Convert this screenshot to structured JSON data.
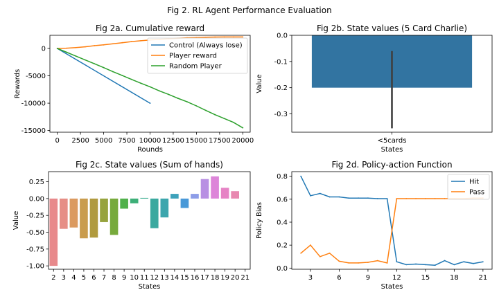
{
  "figure": {
    "suptitle": "Fig 2. RL Agent Performance Evaluation"
  },
  "chart_data": [
    {
      "id": "a",
      "type": "line",
      "title": "Fig 2a. Cumulative reward",
      "xlabel": "Rounds",
      "ylabel": "Rewards",
      "xlim": [
        -800,
        20800
      ],
      "ylim": [
        -15300,
        2400
      ],
      "xticks": [
        0,
        2500,
        5000,
        7500,
        10000,
        12500,
        15000,
        17500,
        20000
      ],
      "yticks": [
        0,
        -5000,
        -10000,
        -15000
      ],
      "legend_position": "upper-right",
      "series": [
        {
          "name": "Control (Always lose)",
          "color": "#1f77b4",
          "x": [
            0,
            10000
          ],
          "y": [
            0,
            -10000
          ]
        },
        {
          "name": "Player reward",
          "color": "#ff7f0e",
          "x": [
            0,
            1000,
            2000,
            3000,
            4000,
            5000,
            6000,
            7000,
            8000,
            9000,
            10000,
            11000,
            12000,
            13000,
            14000,
            15000,
            16000,
            17000,
            18000,
            19000,
            20000
          ],
          "y": [
            0,
            50,
            150,
            300,
            500,
            650,
            850,
            1050,
            1250,
            1400,
            1550,
            1650,
            1750,
            1850,
            1950,
            2000,
            2050,
            2080,
            2100,
            2100,
            2100
          ]
        },
        {
          "name": "Random Player",
          "color": "#2ca02c",
          "x": [
            0,
            1000,
            2000,
            3000,
            4000,
            5000,
            6000,
            7000,
            8000,
            9000,
            10000,
            11000,
            12000,
            13000,
            14000,
            15000,
            16000,
            17000,
            18000,
            19000,
            20000
          ],
          "y": [
            0,
            -700,
            -1400,
            -2100,
            -2800,
            -3500,
            -4250,
            -4950,
            -5650,
            -6350,
            -7000,
            -7750,
            -8400,
            -9100,
            -9750,
            -10500,
            -11300,
            -12100,
            -12800,
            -13500,
            -14500
          ]
        }
      ]
    },
    {
      "id": "b",
      "type": "bar",
      "title": "Fig 2b. State values (5 Card Charlie)",
      "xlabel": "States",
      "ylabel": "Value",
      "ylim": [
        -0.37,
        0.0
      ],
      "yticks": [
        0.0,
        -0.1,
        -0.2,
        -0.3
      ],
      "categories": [
        "<5cards"
      ],
      "values": [
        -0.2
      ],
      "error": [
        [
          -0.355,
          -0.06
        ]
      ],
      "color": "#3274a1"
    },
    {
      "id": "c",
      "type": "bar",
      "title": "Fig 2c. State values (Sum of hands)",
      "xlabel": "States",
      "ylabel": "Value",
      "ylim": [
        -1.05,
        0.4
      ],
      "yticks": [
        0.25,
        0.0,
        -0.25,
        -0.5,
        -0.75,
        -1.0
      ],
      "categories": [
        "2",
        "3",
        "4",
        "5",
        "6",
        "7",
        "8",
        "9",
        "10",
        "11",
        "12",
        "13",
        "14",
        "15",
        "16",
        "17",
        "18",
        "19",
        "20",
        "21"
      ],
      "values": [
        -1.0,
        -0.45,
        -0.43,
        -0.59,
        -0.58,
        -0.35,
        -0.54,
        -0.15,
        -0.07,
        0.01,
        -0.44,
        -0.28,
        0.07,
        -0.14,
        0.07,
        0.29,
        0.33,
        0.16,
        0.11,
        0.0
      ],
      "colors": [
        "#e8898b",
        "#e68e85",
        "#db9a5f",
        "#c99c4d",
        "#b09a3e",
        "#96a33d",
        "#77aa3c",
        "#50b04a",
        "#3daf78",
        "#3aac8f",
        "#3aa99f",
        "#3ca6ad",
        "#3ea2bb",
        "#4999d8",
        "#8d9de8",
        "#b88fe3",
        "#dd85d9",
        "#e683c5",
        "#e888b0",
        "#e98a9a"
      ]
    },
    {
      "id": "d",
      "type": "line",
      "title": "Fig 2d. Policy-action Function",
      "xlabel": "States",
      "ylabel": "Policy Bias",
      "xlim": [
        1.05,
        21.95
      ],
      "ylim": [
        -0.01,
        0.84
      ],
      "xticks": [
        3,
        6,
        9,
        12,
        15,
        18,
        21
      ],
      "yticks": [
        0.0,
        0.2,
        0.4,
        0.6,
        0.8
      ],
      "legend_position": "upper-right",
      "series": [
        {
          "name": "Hit",
          "color": "#1f77b4",
          "x": [
            2,
            3,
            4,
            5,
            6,
            7,
            8,
            9,
            10,
            11,
            12,
            13,
            14,
            15,
            16,
            17,
            18,
            19,
            20,
            21
          ],
          "y": [
            0.8,
            0.63,
            0.65,
            0.62,
            0.62,
            0.61,
            0.61,
            0.61,
            0.605,
            0.605,
            0.055,
            0.03,
            0.035,
            0.03,
            0.025,
            0.065,
            0.03,
            0.055,
            0.04,
            0.055
          ]
        },
        {
          "name": "Pass",
          "color": "#ff7f0e",
          "x": [
            2,
            3,
            4,
            5,
            6,
            7,
            8,
            9,
            10,
            11,
            12,
            13,
            14,
            15,
            16,
            17,
            18,
            19,
            20,
            21
          ],
          "y": [
            0.13,
            0.2,
            0.1,
            0.13,
            0.06,
            0.045,
            0.045,
            0.05,
            0.065,
            0.045,
            0.605,
            0.605,
            0.605,
            0.605,
            0.605,
            0.605,
            0.605,
            0.605,
            0.61,
            0.61
          ]
        }
      ]
    }
  ]
}
